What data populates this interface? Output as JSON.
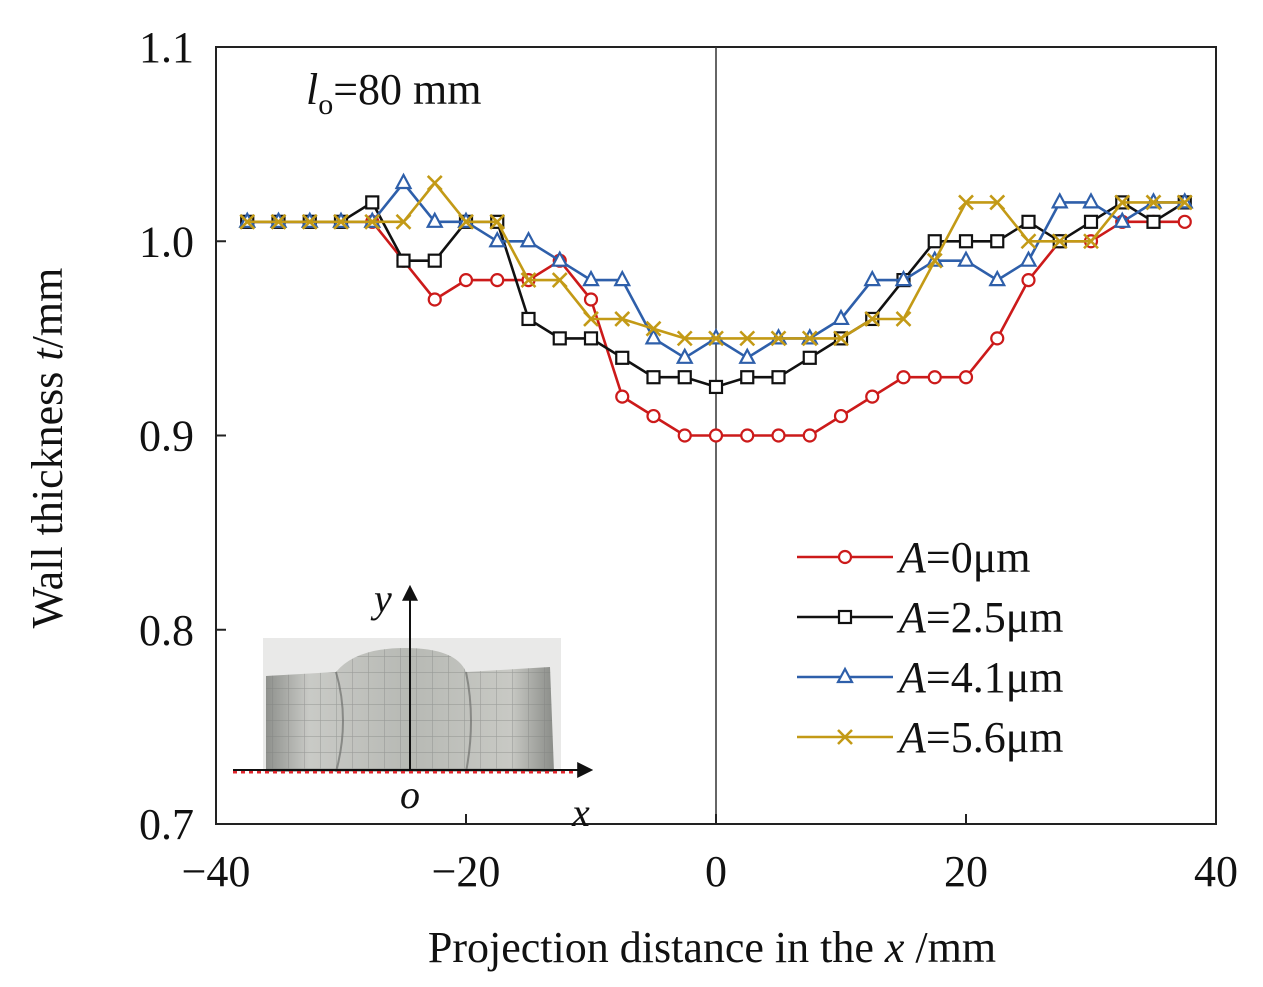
{
  "chart_data": {
    "type": "line",
    "annotation": {
      "var": "l",
      "sub": "o",
      "rest": "=80 mm"
    },
    "xlabel": {
      "pre": "Projection distance in the ",
      "var": "x",
      "post": " /mm"
    },
    "ylabel": {
      "pre": "Wall thickness ",
      "var": "t",
      "post": "/mm"
    },
    "xlim": [
      -40,
      40
    ],
    "ylim": [
      0.7,
      1.1
    ],
    "xticks": [
      -40,
      -20,
      0,
      20,
      40
    ],
    "xtick_labels": [
      "−40",
      "−20",
      "0",
      "20",
      "40"
    ],
    "yticks": [
      0.7,
      0.8,
      0.9,
      1.0,
      1.1
    ],
    "ytick_labels": [
      "0.7",
      "0.8",
      "0.9",
      "1.0",
      "1.1"
    ],
    "x": [
      -37.5,
      -35,
      -32.5,
      -30,
      -27.5,
      -25,
      -22.5,
      -20,
      -17.5,
      -15,
      -12.5,
      -10,
      -7.5,
      -5,
      -2.5,
      0,
      2.5,
      5,
      7.5,
      10,
      12.5,
      15,
      17.5,
      20,
      22.5,
      25,
      27.5,
      30,
      32.5,
      35,
      37.5
    ],
    "series": [
      {
        "name": "A=0μm",
        "var": "A",
        "rest": "=0μm",
        "color": "#cc1a1a",
        "marker": "circle",
        "values": [
          1.01,
          1.01,
          1.01,
          1.01,
          1.01,
          0.99,
          0.97,
          0.98,
          0.98,
          0.98,
          0.99,
          0.97,
          0.92,
          0.91,
          0.9,
          0.9,
          0.9,
          0.9,
          0.9,
          0.91,
          0.92,
          0.93,
          0.93,
          0.93,
          0.95,
          0.98,
          1.0,
          1.0,
          1.01,
          1.01,
          1.01
        ]
      },
      {
        "name": "A=2.5μm",
        "var": "A",
        "rest": "=2.5μm",
        "color": "#111111",
        "marker": "square",
        "values": [
          1.01,
          1.01,
          1.01,
          1.01,
          1.02,
          0.99,
          0.99,
          1.01,
          1.01,
          0.96,
          0.95,
          0.95,
          0.94,
          0.93,
          0.93,
          0.925,
          0.93,
          0.93,
          0.94,
          0.95,
          0.96,
          0.98,
          1.0,
          1.0,
          1.0,
          1.01,
          1.0,
          1.01,
          1.02,
          1.01,
          1.02
        ]
      },
      {
        "name": "A=4.1μm",
        "var": "A",
        "rest": "=4.1μm",
        "color": "#2e5faa",
        "marker": "triangle",
        "values": [
          1.01,
          1.01,
          1.01,
          1.01,
          1.01,
          1.03,
          1.01,
          1.01,
          1.0,
          1.0,
          0.99,
          0.98,
          0.98,
          0.95,
          0.94,
          0.95,
          0.94,
          0.95,
          0.95,
          0.96,
          0.98,
          0.98,
          0.99,
          0.99,
          0.98,
          0.99,
          1.02,
          1.02,
          1.01,
          1.02,
          1.02
        ]
      },
      {
        "name": "A=5.6μm",
        "var": "A",
        "rest": "=5.6μm",
        "color": "#c39a16",
        "marker": "x",
        "values": [
          1.01,
          1.01,
          1.01,
          1.01,
          1.01,
          1.01,
          1.03,
          1.01,
          1.01,
          0.98,
          0.98,
          0.96,
          0.96,
          0.955,
          0.95,
          0.95,
          0.95,
          0.95,
          0.95,
          0.95,
          0.96,
          0.96,
          0.99,
          1.02,
          1.02,
          1.0,
          1.0,
          1.0,
          1.02,
          1.02,
          1.02
        ]
      }
    ],
    "legend_position": "bottom-right",
    "inset": {
      "axis_y": "y",
      "axis_x": "x",
      "origin": "o",
      "description_icon": "tube-photo-icon"
    }
  }
}
